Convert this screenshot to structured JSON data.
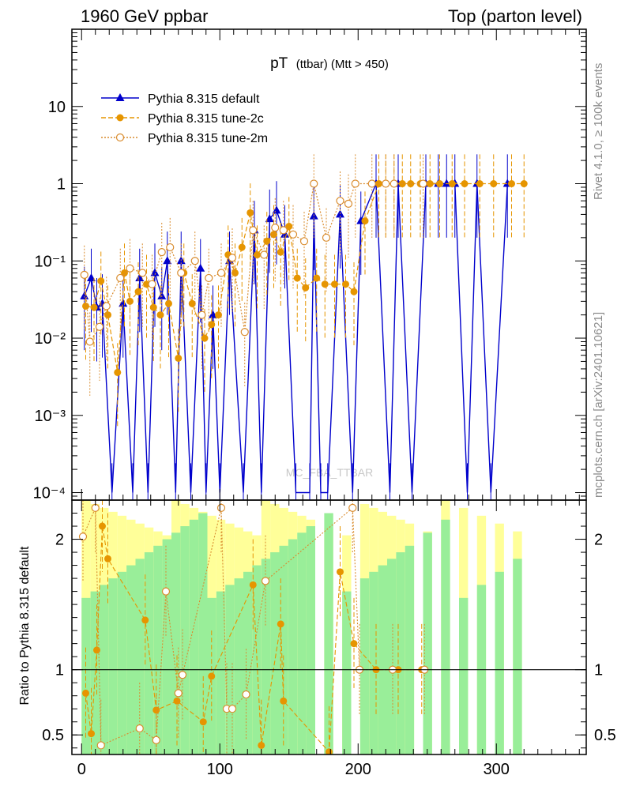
{
  "header": {
    "left": "1960 GeV ppbar",
    "right": "Top (parton level)"
  },
  "side_labels": {
    "rivet": "Rivet 4.1.0, ≥ 100k events",
    "ref": "mcplots.cern.ch [arXiv:2401.10621]"
  },
  "watermark": "MC_FBA_TTBAR",
  "chart_data": {
    "type": "line",
    "title_main": "pT",
    "title_sub": "(ttbar) (Mtt > 450)",
    "main_panel": {
      "yscale": "log",
      "ylim": [
        8e-05,
        100
      ],
      "xlim": [
        -7,
        365
      ],
      "ytick_labels": [
        "10⁻⁴",
        "10⁻³",
        "10⁻²",
        "10⁻¹",
        "1",
        "10"
      ],
      "ytick_values": [
        0.0001,
        0.001,
        0.01,
        0.1,
        1,
        10
      ]
    },
    "ratio_panel": {
      "ylabel": "Ratio to Pythia 8.315 default",
      "ylim": [
        0.35,
        2.3
      ],
      "ytick_labels": [
        "0.5",
        "1",
        "2"
      ],
      "ytick_values": [
        0.5,
        1,
        2
      ]
    },
    "xtick_labels": [
      "0",
      "100",
      "200",
      "300"
    ],
    "xtick_values": [
      0,
      100,
      200,
      300
    ],
    "legend": [
      {
        "name": "Pythia 8.315 default",
        "color": "#0000cc",
        "marker": "triangle",
        "dash": "solid"
      },
      {
        "name": "Pythia 8.315 tune-2c",
        "color": "#e69500",
        "marker": "circle",
        "dash": "dashed"
      },
      {
        "name": "Pythia 8.315 tune-2m",
        "color": "#d98c2e",
        "marker": "open-circle",
        "dash": "dotted"
      }
    ],
    "series": [
      {
        "name": "Pythia 8.315 default",
        "x": [
          2,
          7,
          11,
          15,
          22,
          30,
          37,
          42,
          48,
          53,
          58,
          62,
          68,
          72,
          79,
          86,
          90,
          95,
          100,
          107,
          117,
          125,
          130,
          136,
          141,
          147,
          155,
          165,
          168,
          173,
          178,
          187,
          196,
          202,
          213,
          223,
          229,
          239,
          249,
          258,
          264,
          270,
          279,
          286,
          296,
          308
        ],
        "y": [
          0.035,
          0.06,
          0.025,
          0.028,
          0.0001,
          0.028,
          0.0001,
          0.06,
          0.0001,
          0.07,
          0.035,
          0.1,
          0.0001,
          0.1,
          0.0001,
          0.08,
          0.0001,
          0.02,
          0.0001,
          0.1,
          0.0001,
          0.25,
          0.0001,
          0.35,
          0.45,
          0.22,
          0.0001,
          0.0001,
          0.38,
          0.0001,
          0.0001,
          0.4,
          0.0001,
          0.33,
          1,
          0.0001,
          1,
          0.0001,
          1,
          1,
          1,
          1,
          0.0001,
          1,
          0.0001,
          1
        ],
        "color": "#0000cc"
      },
      {
        "name": "Pythia 8.315 tune-2c",
        "x": [
          3,
          9,
          14,
          19,
          26,
          31,
          35,
          41,
          47,
          52,
          57,
          63,
          70,
          74,
          80,
          89,
          94,
          99,
          106,
          111,
          116,
          122,
          127,
          134,
          139,
          144,
          150,
          156,
          162,
          170,
          176,
          183,
          191,
          197,
          205,
          215,
          220,
          226,
          232,
          238,
          245,
          252,
          259,
          268,
          277,
          288,
          298,
          311,
          320
        ],
        "y": [
          0.026,
          0.025,
          0.055,
          0.02,
          0.0036,
          0.07,
          0.03,
          0.04,
          0.05,
          0.025,
          0.02,
          0.028,
          0.0055,
          0.07,
          0.028,
          0.01,
          0.015,
          0.02,
          0.12,
          0.07,
          0.15,
          0.42,
          0.12,
          0.18,
          0.22,
          0.13,
          0.28,
          0.06,
          0.045,
          0.06,
          0.05,
          0.05,
          0.05,
          0.04,
          0.33,
          1,
          1,
          1,
          1,
          1,
          1,
          1,
          1,
          1,
          1,
          1,
          1,
          1,
          1
        ],
        "color": "#e69500"
      },
      {
        "name": "Pythia 8.315 tune-2m",
        "x": [
          2,
          6,
          13,
          18,
          28,
          35,
          44,
          51,
          58,
          64,
          72,
          82,
          87,
          92,
          101,
          109,
          118,
          124,
          132,
          140,
          146,
          153,
          161,
          168,
          177,
          187,
          193,
          198,
          210,
          220,
          226,
          247
        ],
        "y": [
          0.066,
          0.009,
          0.014,
          0.026,
          0.06,
          0.08,
          0.07,
          0.05,
          0.13,
          0.15,
          0.07,
          0.1,
          0.02,
          0.06,
          0.07,
          0.11,
          0.012,
          0.25,
          0.12,
          0.27,
          0.25,
          0.22,
          0.18,
          1,
          0.2,
          0.6,
          0.55,
          1,
          1,
          1,
          1,
          1
        ],
        "color": "#d98c2e"
      }
    ],
    "ratio_series": [
      {
        "name": "Pythia 8.315 tune-2c",
        "x": [
          3,
          7,
          11,
          15,
          19,
          46,
          54,
          69,
          88,
          94,
          124,
          130,
          144,
          146,
          179,
          187,
          197,
          213,
          229,
          246
        ],
        "y": [
          0.82,
          0.51,
          1.15,
          2.1,
          1.85,
          1.38,
          0.69,
          0.76,
          0.6,
          0.95,
          1.65,
          0.42,
          1.35,
          0.76,
          0.37,
          1.75,
          1.2,
          1,
          1,
          1
        ]
      },
      {
        "name": "Pythia 8.315 tune-2m",
        "x": [
          1,
          10,
          14,
          42,
          54,
          61,
          70,
          73,
          101,
          105,
          109,
          119,
          133,
          196,
          201,
          225,
          248
        ],
        "y": [
          2.02,
          2.24,
          0.42,
          0.55,
          0.46,
          1.6,
          0.82,
          0.96,
          2.24,
          0.7,
          0.7,
          0.81,
          1.68,
          2.24,
          1,
          1,
          1
        ]
      }
    ]
  }
}
